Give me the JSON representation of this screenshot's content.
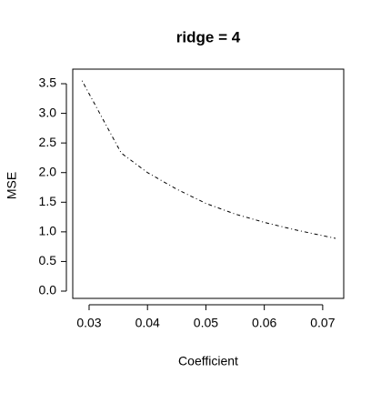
{
  "chart_data": {
    "type": "line",
    "title": "ridge = 4",
    "x_label": "Coefficient",
    "y_label": "MSE",
    "x": [
      0.0288,
      0.0355,
      0.04,
      0.045,
      0.05,
      0.055,
      0.06,
      0.065,
      0.0722
    ],
    "values": [
      3.55,
      2.33,
      2.0,
      1.72,
      1.48,
      1.3,
      1.16,
      1.04,
      0.89
    ],
    "color": "#000000",
    "line_style": "dotdash",
    "xlim": [
      0.0272,
      0.0736
    ],
    "xticks": [
      0.03,
      0.04,
      0.05,
      0.06,
      0.07
    ],
    "ylim": [
      -0.123,
      3.746
    ],
    "yticks": [
      {
        "value": 0,
        "label": "0.0"
      },
      0.5,
      {
        "value": 1,
        "label": "1.0"
      },
      1.5,
      {
        "value": 2,
        "label": "2.0"
      },
      2.5,
      {
        "value": 3,
        "label": "3.0"
      },
      3.5
    ]
  }
}
